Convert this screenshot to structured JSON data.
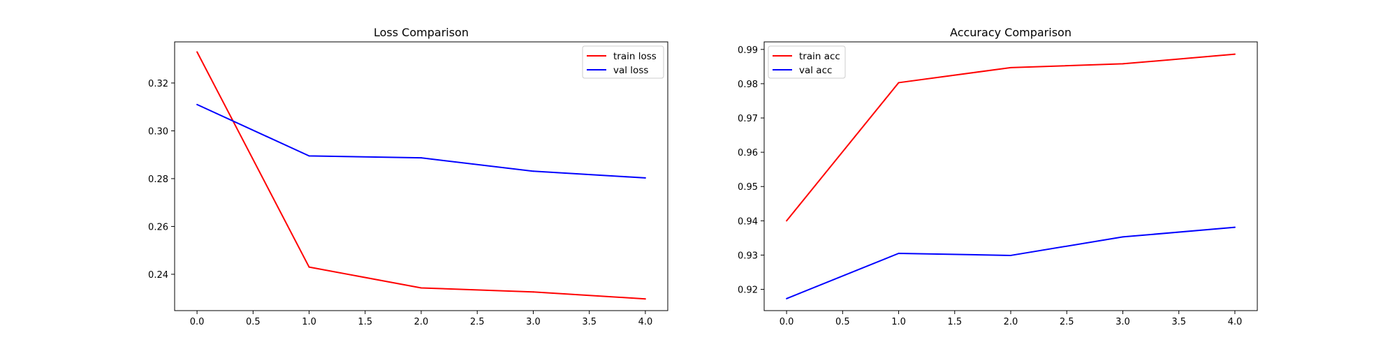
{
  "colors": {
    "train": "#ff0000",
    "val": "#0000ff",
    "background": "#ffffff"
  },
  "chart_data": [
    {
      "type": "line",
      "title": "Loss Comparison",
      "xlabel": "",
      "ylabel": "",
      "x": [
        0,
        1,
        2,
        3,
        4
      ],
      "xlim": [
        -0.2,
        4.2
      ],
      "ylim": [
        0.2248,
        0.3372
      ],
      "xticks": [
        0.0,
        0.5,
        1.0,
        1.5,
        2.0,
        2.5,
        3.0,
        3.5,
        4.0
      ],
      "xtick_labels": [
        "0.0",
        "0.5",
        "1.0",
        "1.5",
        "2.0",
        "2.5",
        "3.0",
        "3.5",
        "4.0"
      ],
      "yticks": [
        0.24,
        0.26,
        0.28,
        0.3,
        0.32
      ],
      "ytick_labels": [
        "0.24",
        "0.26",
        "0.28",
        "0.30",
        "0.32"
      ],
      "grid": false,
      "legend_position": "top-right",
      "series": [
        {
          "name": "train loss",
          "color": "#ff0000",
          "values": [
            0.333,
            0.243,
            0.2343,
            0.2326,
            0.2297
          ]
        },
        {
          "name": "val loss",
          "color": "#0000ff",
          "values": [
            0.311,
            0.2895,
            0.2887,
            0.2831,
            0.2803
          ]
        }
      ]
    },
    {
      "type": "line",
      "title": "Accuracy Comparison",
      "xlabel": "",
      "ylabel": "",
      "x": [
        0,
        1,
        2,
        3,
        4
      ],
      "xlim": [
        -0.2,
        4.2
      ],
      "ylim": [
        0.9138,
        0.9922
      ],
      "xticks": [
        0.0,
        0.5,
        1.0,
        1.5,
        2.0,
        2.5,
        3.0,
        3.5,
        4.0
      ],
      "xtick_labels": [
        "0.0",
        "0.5",
        "1.0",
        "1.5",
        "2.0",
        "2.5",
        "3.0",
        "3.5",
        "4.0"
      ],
      "yticks": [
        0.92,
        0.93,
        0.94,
        0.95,
        0.96,
        0.97,
        0.98,
        0.99
      ],
      "ytick_labels": [
        "0.92",
        "0.93",
        "0.94",
        "0.95",
        "0.96",
        "0.97",
        "0.98",
        "0.99"
      ],
      "grid": false,
      "legend_position": "top-left",
      "series": [
        {
          "name": "train acc",
          "color": "#ff0000",
          "values": [
            0.94,
            0.9803,
            0.9847,
            0.9858,
            0.9886
          ]
        },
        {
          "name": "val acc",
          "color": "#0000ff",
          "values": [
            0.9173,
            0.9305,
            0.9299,
            0.9353,
            0.9381
          ]
        }
      ]
    }
  ]
}
